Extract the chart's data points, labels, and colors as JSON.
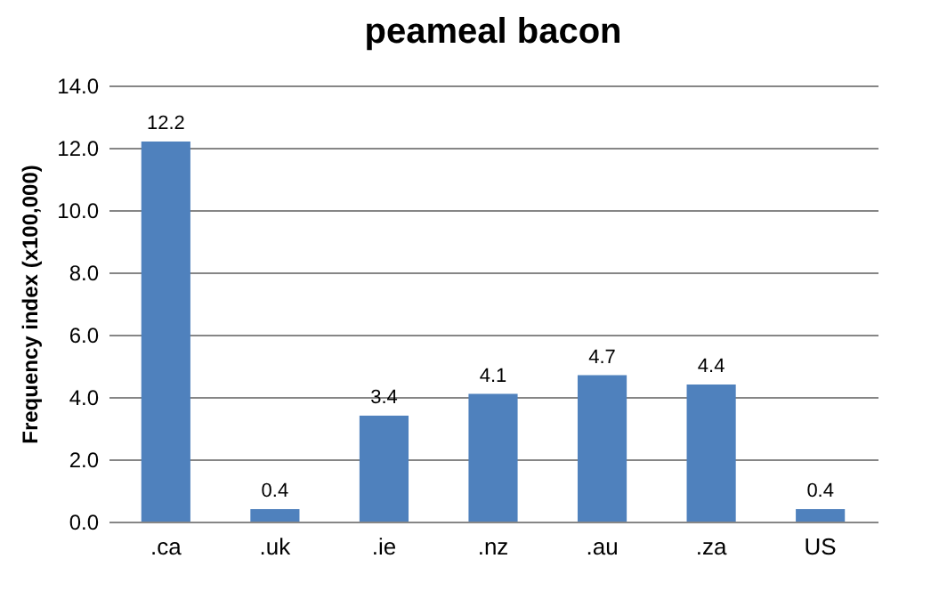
{
  "chart_data": {
    "type": "bar",
    "title": "peameal bacon",
    "ylabel": "Frequency index (x100,000)",
    "categories": [
      ".ca",
      ".uk",
      ".ie",
      ".nz",
      ".au",
      ".za",
      "US"
    ],
    "values": [
      12.2,
      0.4,
      3.4,
      4.1,
      4.7,
      4.4,
      0.4
    ],
    "color": "#4f81bd",
    "ylim": [
      0,
      14
    ],
    "yticks": [
      {
        "value": 0,
        "label": "0.0"
      },
      {
        "value": 2,
        "label": "2.0"
      },
      {
        "value": 4,
        "label": "4.0"
      },
      {
        "value": 6,
        "label": "6.0"
      },
      {
        "value": 8,
        "label": "8.0"
      },
      {
        "value": 10,
        "label": "10.0"
      },
      {
        "value": 12,
        "label": "12.0"
      },
      {
        "value": 14,
        "label": "14.0"
      }
    ],
    "grid": "y",
    "data_labels": true
  }
}
